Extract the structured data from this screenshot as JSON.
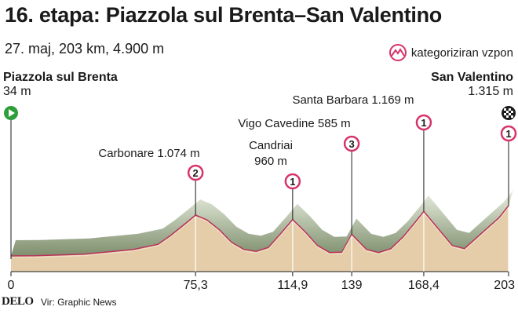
{
  "title": "16. etapa: Piazzola sul Brenta–San Valentino",
  "subtitle": "27. maj, 203 km, 4.900 m",
  "legend": {
    "label": "kategoriziran vzpon"
  },
  "start": {
    "name": "Piazzola sul Brenta",
    "altitude": "34 m"
  },
  "finish": {
    "name": "San Valentino",
    "altitude": "1.315 m"
  },
  "colors": {
    "climb_marker": "#d6336c",
    "start_marker": "#2e9e3a",
    "profile_fill": "#e4cda8",
    "profile_top": "#8fa57a"
  },
  "footer": {
    "logo": "DELO",
    "source": "Vir: Graphic News"
  },
  "chart_data": {
    "type": "area",
    "xlabel": "",
    "ylabel": "",
    "x_ticks": [
      "0",
      "75,3",
      "114,9",
      "139",
      "168,4",
      "203"
    ],
    "x": [
      0,
      10,
      20,
      30,
      40,
      50,
      60,
      65,
      70,
      75.3,
      80,
      85,
      90,
      95,
      100,
      105,
      110,
      114.9,
      120,
      125,
      130,
      135,
      139,
      145,
      150,
      155,
      160,
      165,
      168.4,
      172,
      176,
      180,
      185,
      190,
      195,
      199,
      203
    ],
    "y": [
      34,
      40,
      60,
      80,
      140,
      200,
      330,
      550,
      800,
      1074,
      950,
      700,
      380,
      200,
      150,
      250,
      600,
      960,
      650,
      300,
      120,
      130,
      585,
      200,
      120,
      220,
      520,
      900,
      1169,
      900,
      600,
      300,
      220,
      500,
      780,
      1000,
      1315
    ],
    "climbs": [
      {
        "name": "Carbonare 1.074 m",
        "category": "2",
        "km": 75.3,
        "alt": 1074
      },
      {
        "name": "Candriai",
        "alt_label": "960 m",
        "category": "1",
        "km": 114.9,
        "alt": 960
      },
      {
        "name": "Vigo Cavedine 585 m",
        "category": "3",
        "km": 139,
        "alt": 585
      },
      {
        "name": "Santa Barbara 1.169 m",
        "category": "1",
        "km": 168.4,
        "alt": 1169
      },
      {
        "name": "",
        "category": "1",
        "km": 203,
        "alt": 1315
      }
    ]
  }
}
